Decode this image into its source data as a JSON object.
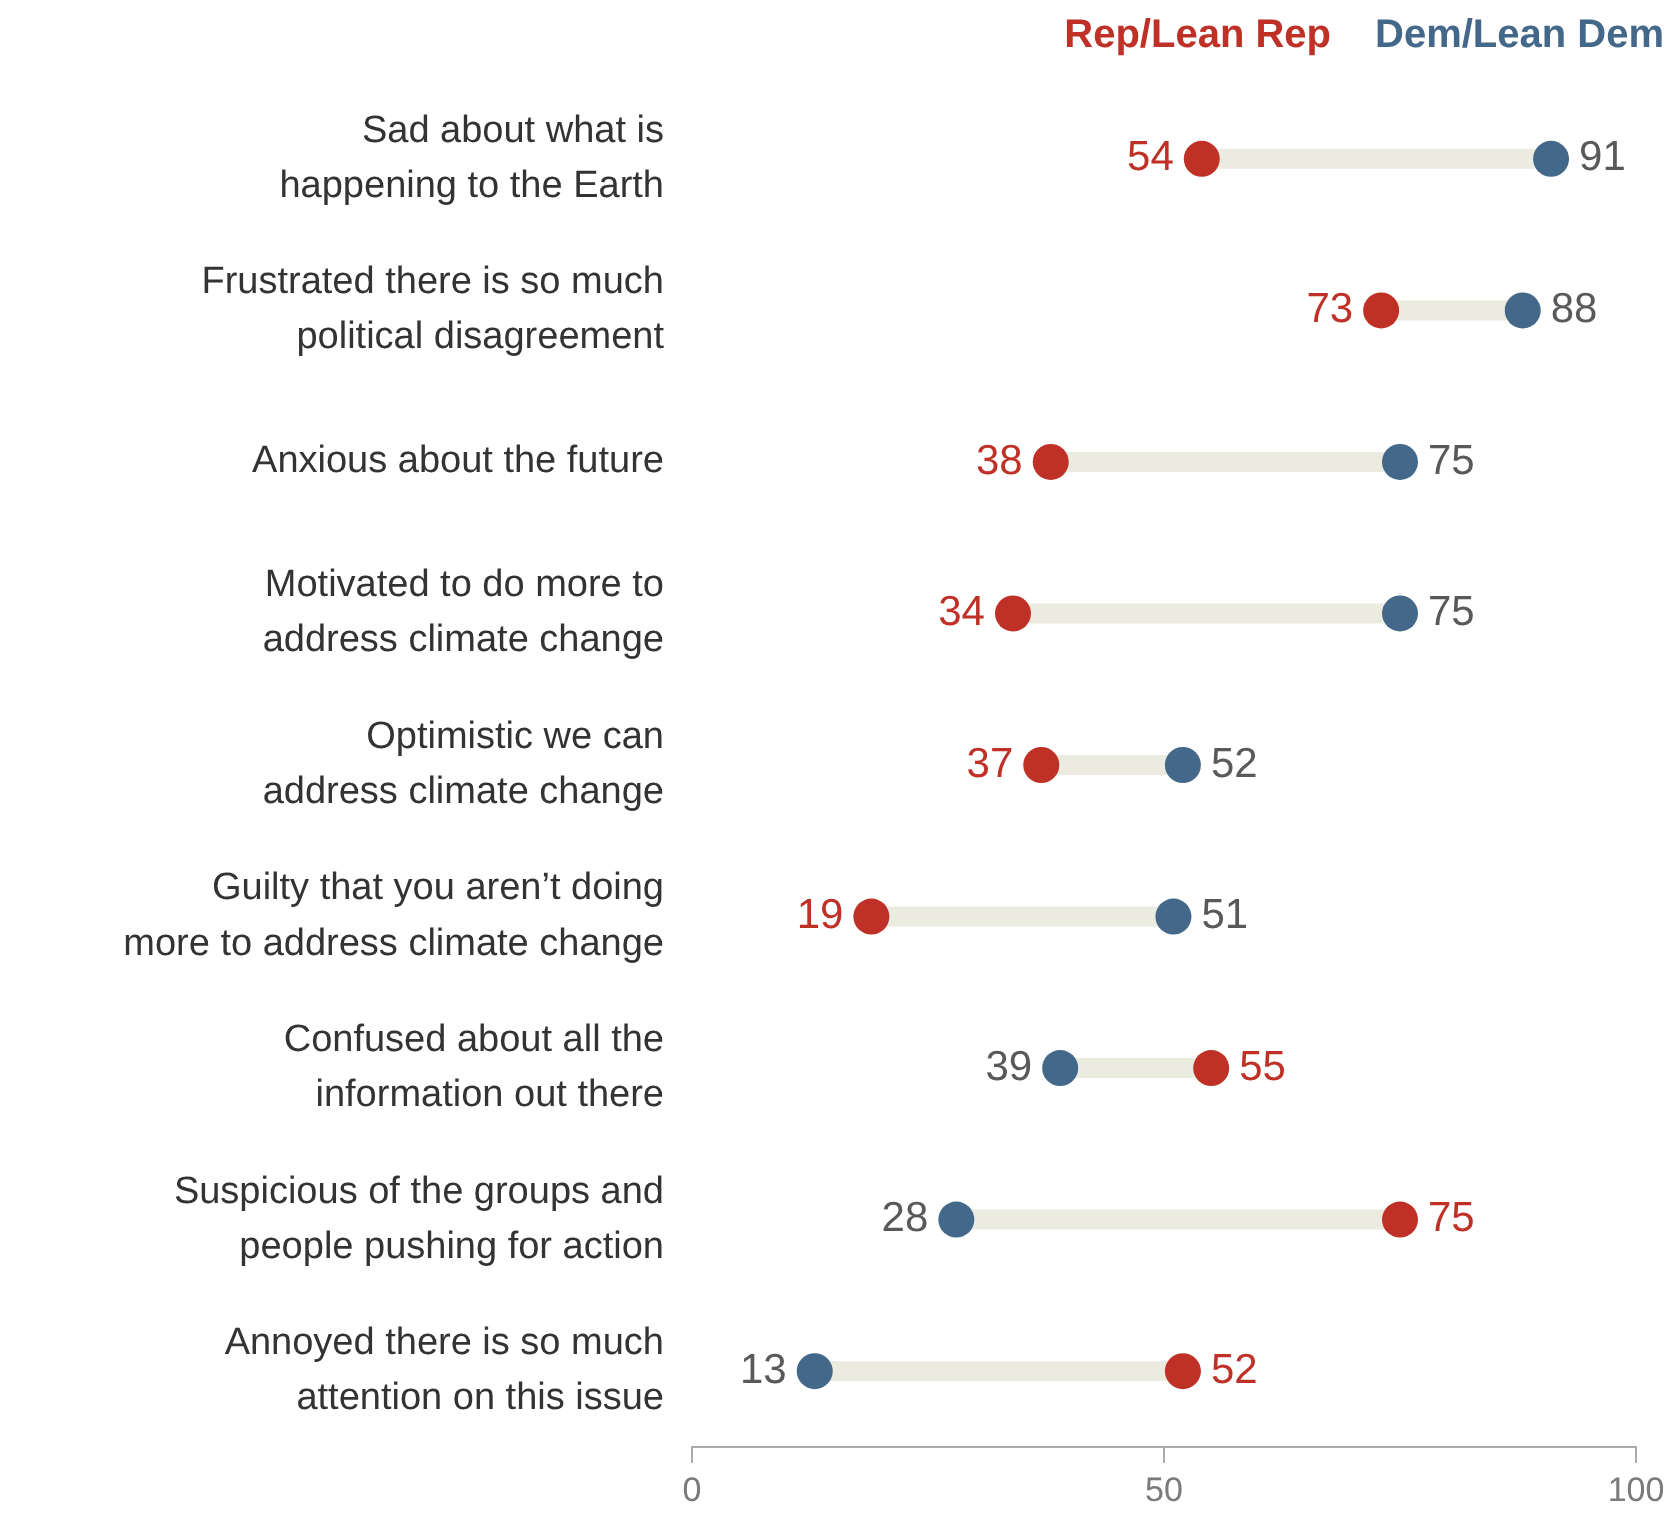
{
  "chart_data": {
    "type": "scatter",
    "orientation": "horizontal",
    "categories": [
      "Sad about what is happening to the Earth",
      "Frustrated there is so much political disagreement",
      "Anxious about the future",
      "Motivated to do more to address climate change",
      "Optimistic we can address climate change",
      "Guilty that you aren’t doing more to address climate change",
      "Confused about all the information out there",
      "Suspicious of the groups and people pushing for action",
      "Annoyed there is so much attention on this issue"
    ],
    "series": [
      {
        "name": "Rep/Lean Rep",
        "color": "#bf3127",
        "values": [
          54,
          73,
          38,
          34,
          37,
          19,
          55,
          75,
          52
        ]
      },
      {
        "name": "Dem/Lean Dem",
        "color": "#436889",
        "values": [
          91,
          88,
          75,
          75,
          52,
          51,
          39,
          28,
          13
        ]
      }
    ],
    "xlim": [
      0,
      100
    ],
    "xticks": [
      0,
      50,
      100
    ],
    "grid": false,
    "legend": "top right",
    "marker": "circle",
    "data_labels": true
  }
}
